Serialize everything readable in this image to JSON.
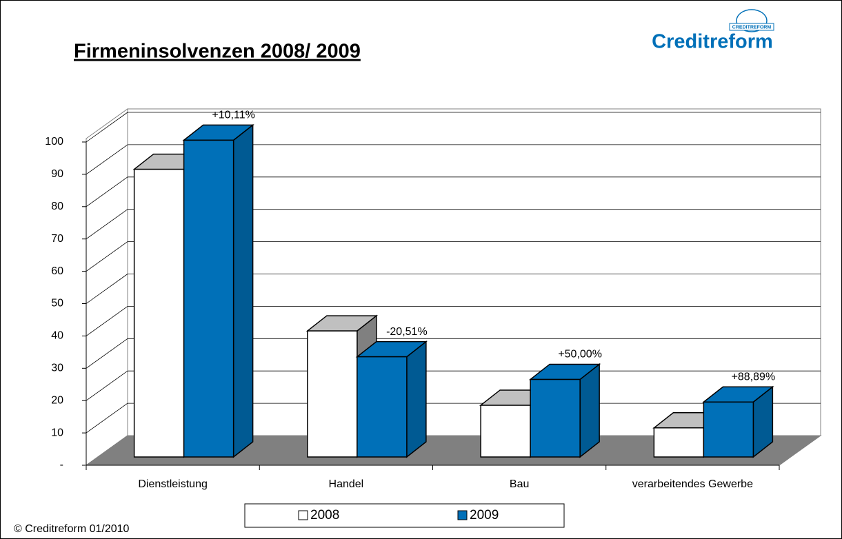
{
  "chart_data": {
    "type": "bar3d",
    "title": "Firmeninsolvenzen 2008/ 2009",
    "categories": [
      "Dienstleistung",
      "Handel",
      "Bau",
      "verarbeitendes Gewerbe"
    ],
    "series": [
      {
        "name": "2008",
        "color": "#ffffff",
        "values": [
          89,
          39,
          16,
          9
        ]
      },
      {
        "name": "2009",
        "color": "#0070b8",
        "values": [
          98,
          31,
          24,
          17
        ]
      }
    ],
    "annotations": [
      "+10,11%",
      "-20,51%",
      "+50,00%",
      "+88,89%"
    ],
    "ylim": [
      0,
      100
    ],
    "yticks": [
      {
        "value": 0,
        "label": "-"
      },
      10,
      20,
      30,
      40,
      50,
      60,
      70,
      80,
      90,
      100
    ],
    "grid": true,
    "floor_color": "#808080"
  },
  "logo": {
    "text": "Creditreform",
    "badge": "CREDITREFORM"
  },
  "footer": "© Creditreform 01/2010"
}
